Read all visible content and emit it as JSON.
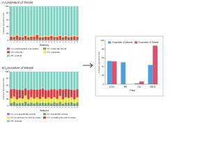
{
  "chart_data": [
    {
      "type": "stacked-bar",
      "title": "A ) procedure of Tessier",
      "xlabel": "Stations",
      "ylabel": "Fraction proportion (%)",
      "categories": [
        "1",
        "2",
        "3",
        "4",
        "5",
        "6",
        "7",
        "8",
        "9",
        "10",
        "11",
        "12",
        "13",
        "14",
        "15",
        "16",
        "17",
        "18",
        "19",
        "20",
        "21",
        "22",
        "23",
        "24"
      ],
      "ylim": [
        0,
        100
      ],
      "yticks": [
        0,
        20,
        40,
        60,
        80,
        100
      ],
      "series": [
        {
          "name": "F1: exchangeable and soluble",
          "color": "#b266cc",
          "values": [
            1,
            1,
            2,
            1,
            1,
            2,
            1,
            1,
            1,
            2,
            1,
            1,
            1,
            1,
            2,
            1,
            1,
            1,
            2,
            1,
            1,
            1,
            1,
            2
          ]
        },
        {
          "name": "F2: carbonate bound",
          "color": "#5fae4f",
          "values": [
            2,
            3,
            2,
            2,
            3,
            2,
            2,
            2,
            3,
            2,
            2,
            3,
            2,
            2,
            2,
            3,
            2,
            2,
            2,
            3,
            2,
            2,
            2,
            2
          ]
        },
        {
          "name": "F3: reducible",
          "color": "#e0393b",
          "values": [
            8,
            6,
            10,
            7,
            5,
            9,
            6,
            8,
            7,
            12,
            6,
            5,
            8,
            7,
            9,
            6,
            7,
            10,
            5,
            8,
            6,
            7,
            9,
            6
          ]
        },
        {
          "name": "F4: oxidizable",
          "color": "#f2e23c",
          "values": [
            3,
            2,
            3,
            2,
            2,
            3,
            2,
            3,
            2,
            3,
            2,
            2,
            3,
            2,
            3,
            2,
            2,
            3,
            2,
            3,
            2,
            2,
            3,
            2
          ]
        },
        {
          "name": "F5: residual",
          "color": "#7fd3c4",
          "values": [
            86,
            88,
            83,
            88,
            89,
            84,
            89,
            86,
            87,
            81,
            89,
            89,
            86,
            88,
            84,
            88,
            88,
            84,
            89,
            85,
            89,
            88,
            85,
            88
          ]
        }
      ]
    },
    {
      "type": "stacked-bar",
      "title": "B ) procedure of Wenzel",
      "xlabel": "Stations",
      "ylabel": "Fraction proportion (%)",
      "categories": [
        "1",
        "2",
        "3",
        "4",
        "5",
        "6",
        "7",
        "8",
        "9",
        "10",
        "11",
        "12",
        "13",
        "14",
        "15",
        "16",
        "17",
        "18",
        "19",
        "20",
        "21",
        "22",
        "23",
        "24"
      ],
      "ylim": [
        0,
        100
      ],
      "yticks": [
        0,
        20,
        40,
        60,
        80,
        100
      ],
      "series": [
        {
          "name": "F1: non-specifically sorbed",
          "color": "#b266cc",
          "values": [
            2,
            3,
            2,
            1,
            2,
            3,
            2,
            2,
            1,
            2,
            3,
            2,
            2,
            1,
            2,
            3,
            2,
            2,
            1,
            2,
            3,
            2,
            2,
            2
          ]
        },
        {
          "name": "F2: specifically sorbed",
          "color": "#5fae4f",
          "values": [
            6,
            8,
            5,
            7,
            6,
            9,
            5,
            7,
            6,
            8,
            5,
            7,
            6,
            8,
            5,
            7,
            6,
            9,
            5,
            7,
            6,
            8,
            5,
            7
          ]
        },
        {
          "name": "F3: amorphous Fe and Al oxides",
          "color": "#f2e23c",
          "values": [
            14,
            16,
            12,
            15,
            13,
            18,
            12,
            16,
            14,
            15,
            12,
            17,
            13,
            16,
            14,
            15,
            12,
            18,
            13,
            16,
            14,
            15,
            12,
            16
          ]
        },
        {
          "name": "F4: crystalline Fe and Al oxides",
          "color": "#e0393b",
          "values": [
            26,
            22,
            28,
            24,
            25,
            20,
            27,
            23,
            26,
            22,
            28,
            24,
            25,
            21,
            27,
            23,
            26,
            20,
            28,
            24,
            25,
            22,
            27,
            23
          ]
        },
        {
          "name": "F5: residual",
          "color": "#7fd3c4",
          "values": [
            52,
            51,
            53,
            53,
            54,
            50,
            54,
            52,
            53,
            53,
            52,
            50,
            54,
            54,
            52,
            52,
            54,
            51,
            53,
            51,
            52,
            53,
            54,
            52
          ]
        }
      ]
    },
    {
      "type": "grouped-bar",
      "xlabel": "Step",
      "ylabel": "Fraction proportion (%)",
      "categories": [
        "EXC",
        "RE",
        "OX",
        "RES"
      ],
      "ylim": [
        0,
        100
      ],
      "yticks": [
        0,
        20,
        40,
        60,
        80,
        100
      ],
      "series": [
        {
          "name": "Procedure of Wenzel",
          "color": "#4f9fe0",
          "values": [
            53,
            50,
            2,
            44
          ]
        },
        {
          "name": "Procedure of Tessier",
          "color": "#e0506a",
          "values": [
            52,
            0,
            6,
            88
          ]
        }
      ]
    }
  ]
}
